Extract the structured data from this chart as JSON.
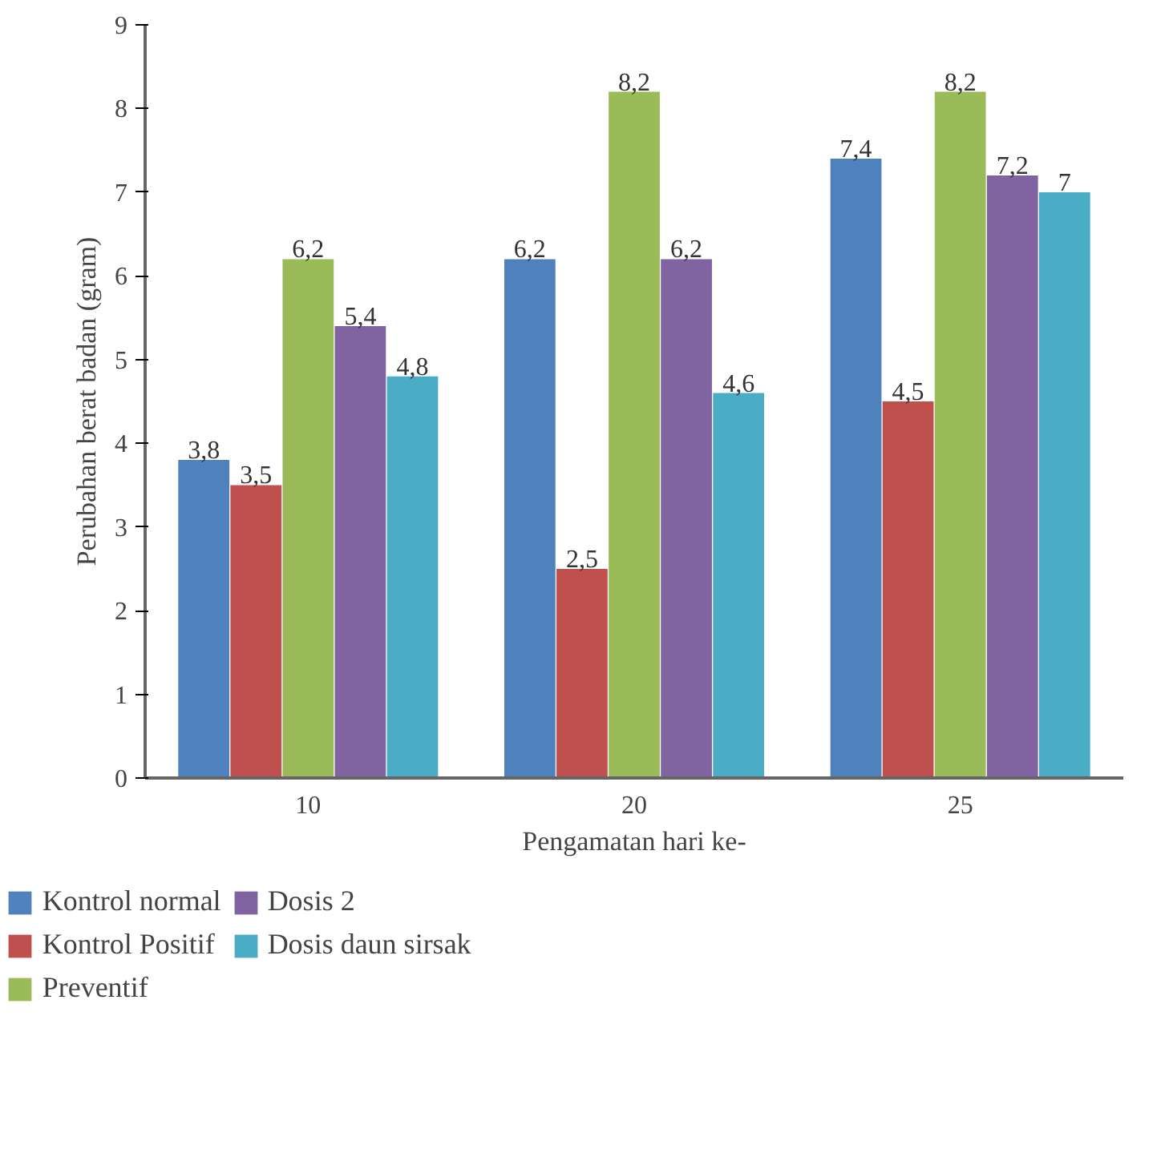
{
  "chart_data": {
    "type": "bar",
    "xlabel": "Pengamatan hari ke-",
    "ylabel": "Perubahan berat badan (gram)",
    "categories": [
      "10",
      "20",
      "25"
    ],
    "ylim": [
      0,
      9
    ],
    "yticks": [
      0,
      1,
      2,
      3,
      4,
      5,
      6,
      7,
      8,
      9
    ],
    "grid": false,
    "legend": "bottom",
    "series": [
      {
        "name": "Kontrol normal",
        "color": "#4f81bd",
        "values": [
          3.8,
          6.2,
          7.4
        ],
        "value_labels": [
          "3,8",
          "6,2",
          "7,4"
        ]
      },
      {
        "name": "Kontrol Positif",
        "color": "#c0504d",
        "values": [
          3.5,
          2.5,
          4.5
        ],
        "value_labels": [
          "3,5",
          "2,5",
          "4,5"
        ]
      },
      {
        "name": "Preventif",
        "color": "#9bbb59",
        "values": [
          6.2,
          8.2,
          8.2
        ],
        "value_labels": [
          "6,2",
          "8,2",
          "8,2"
        ]
      },
      {
        "name": "Dosis 2",
        "color": "#8064a2",
        "values": [
          5.4,
          6.2,
          7.2
        ],
        "value_labels": [
          "5,4",
          "6,2",
          "7,2"
        ]
      },
      {
        "name": "Dosis daun sirsak",
        "color": "#4bacc6",
        "values": [
          4.8,
          4.6,
          7
        ],
        "value_labels": [
          "4,8",
          "4,6",
          "7"
        ]
      }
    ]
  }
}
